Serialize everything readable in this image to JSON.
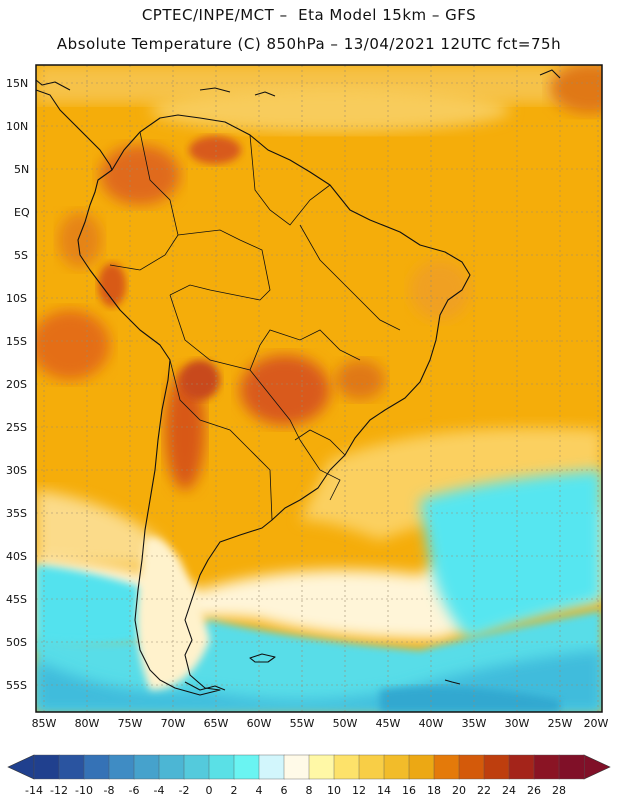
{
  "header": {
    "line1": "CPTEC/INPE/MCT –  Eta Model 15km – GFS",
    "line2": "Absolute Temperature (C) 850hPa – 13/04/2021 12UTC fct=75h"
  },
  "map": {
    "lat_labels": [
      "15N",
      "10N",
      "5N",
      "EQ",
      "5S",
      "10S",
      "15S",
      "20S",
      "25S",
      "30S",
      "35S",
      "40S",
      "45S",
      "50S",
      "55S"
    ],
    "lon_labels": [
      "85W",
      "80W",
      "75W",
      "70W",
      "65W",
      "60W",
      "55W",
      "50W",
      "45W",
      "40W",
      "35W",
      "30W",
      "25W",
      "20W"
    ],
    "colors": {
      "very_warm": "#f5a800",
      "warm": "#f7b800",
      "hot": "#e06a1c",
      "hottest": "#c4481a",
      "mild": "#fbd86a",
      "cool": "#fff6dc",
      "cyan": "#4fe0f0",
      "blue": "#30b8d8"
    }
  },
  "colorbar": {
    "colors": [
      "#20408e",
      "#2a54a0",
      "#3572b6",
      "#3f8cc4",
      "#46a2cc",
      "#4cb6d4",
      "#54cadc",
      "#5ae0e6",
      "#6af4f2",
      "#d2f6fc",
      "#fffae8",
      "#fff8a6",
      "#fde26a",
      "#f8ce46",
      "#f2bc2a",
      "#eca814",
      "#e47a0a",
      "#d45a0a",
      "#be3e0e",
      "#a4241a",
      "#8a1424",
      "#801028"
    ],
    "labels": [
      "-14",
      "-12",
      "-10",
      "-8",
      "-6",
      "-4",
      "-2",
      "0",
      "2",
      "4",
      "6",
      "8",
      "10",
      "12",
      "14",
      "16",
      "18",
      "20",
      "22",
      "24",
      "26",
      "28"
    ]
  }
}
